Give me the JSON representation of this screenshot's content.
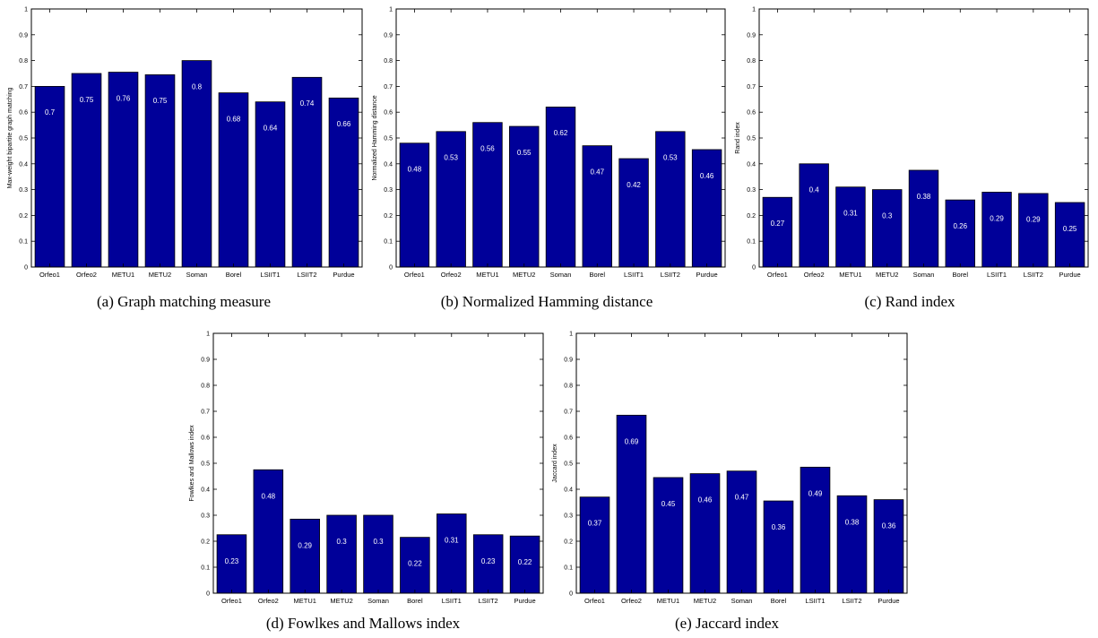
{
  "chart_data": [
    {
      "type": "bar",
      "caption": "(a)  Graph matching measure",
      "ylabel": "Max-weight bipartite graph matching",
      "categories": [
        "Orfeo1",
        "Orfeo2",
        "METU1",
        "METU2",
        "Soman",
        "Borel",
        "LSIIT1",
        "LSIIT2",
        "Purdue"
      ],
      "values": [
        0.7,
        0.75,
        0.755,
        0.745,
        0.8,
        0.675,
        0.64,
        0.735,
        0.655
      ],
      "labels": [
        "0.7",
        "0.75",
        "0.76",
        "0.75",
        "0.8",
        "0.68",
        "0.64",
        "0.74",
        "0.66"
      ],
      "ylim": [
        0,
        1
      ],
      "yticks": [
        "0",
        "0.1",
        "0.2",
        "0.3",
        "0.4",
        "0.5",
        "0.6",
        "0.7",
        "0.8",
        "0.9",
        "1"
      ],
      "bar_color": "#000099"
    },
    {
      "type": "bar",
      "caption": "(b)  Normalized Hamming distance",
      "ylabel": "Normalized Hamming distance",
      "categories": [
        "Orfeo1",
        "Orfeo2",
        "METU1",
        "METU2",
        "Soman",
        "Borel",
        "LSIIT1",
        "LSIIT2",
        "Purdue"
      ],
      "values": [
        0.48,
        0.525,
        0.56,
        0.545,
        0.62,
        0.47,
        0.42,
        0.525,
        0.455
      ],
      "labels": [
        "0.48",
        "0.53",
        "0.56",
        "0.55",
        "0.62",
        "0.47",
        "0.42",
        "0.53",
        "0.46"
      ],
      "ylim": [
        0,
        1
      ],
      "yticks": [
        "0",
        "0.1",
        "0.2",
        "0.3",
        "0.4",
        "0.5",
        "0.6",
        "0.7",
        "0.8",
        "0.9",
        "1"
      ],
      "bar_color": "#000099"
    },
    {
      "type": "bar",
      "caption": "(c)  Rand index",
      "ylabel": "Rand index",
      "categories": [
        "Orfeo1",
        "Orfeo2",
        "METU1",
        "METU2",
        "Soman",
        "Borel",
        "LSIIT1",
        "LSIIT2",
        "Purdue"
      ],
      "values": [
        0.27,
        0.4,
        0.31,
        0.3,
        0.375,
        0.26,
        0.29,
        0.285,
        0.25
      ],
      "labels": [
        "0.27",
        "0.4",
        "0.31",
        "0.3",
        "0.38",
        "0.26",
        "0.29",
        "0.29",
        "0.25"
      ],
      "ylim": [
        0,
        1
      ],
      "yticks": [
        "0",
        "0.1",
        "0.2",
        "0.3",
        "0.4",
        "0.5",
        "0.6",
        "0.7",
        "0.8",
        "0.9",
        "1"
      ],
      "bar_color": "#000099"
    },
    {
      "type": "bar",
      "caption": "(d)  Fowlkes and Mallows index",
      "ylabel": "Fowlkes and Mallows index",
      "categories": [
        "Orfeo1",
        "Orfeo2",
        "METU1",
        "METU2",
        "Soman",
        "Borel",
        "LSIIT1",
        "LSIIT2",
        "Purdue"
      ],
      "values": [
        0.225,
        0.475,
        0.285,
        0.3,
        0.3,
        0.215,
        0.305,
        0.225,
        0.22
      ],
      "labels": [
        "0.23",
        "0.48",
        "0.29",
        "0.3",
        "0.3",
        "0.22",
        "0.31",
        "0.23",
        "0.22"
      ],
      "ylim": [
        0,
        1
      ],
      "yticks": [
        "0",
        "0.1",
        "0.2",
        "0.3",
        "0.4",
        "0.5",
        "0.6",
        "0.7",
        "0.8",
        "0.9",
        "1"
      ],
      "bar_color": "#000099"
    },
    {
      "type": "bar",
      "caption": "(e)  Jaccard index",
      "ylabel": "Jaccard index",
      "categories": [
        "Orfeo1",
        "Orfeo2",
        "METU1",
        "METU2",
        "Soman",
        "Borel",
        "LSIIT1",
        "LSIIT2",
        "Purdue"
      ],
      "values": [
        0.37,
        0.685,
        0.445,
        0.46,
        0.47,
        0.355,
        0.485,
        0.375,
        0.36
      ],
      "labels": [
        "0.37",
        "0.69",
        "0.45",
        "0.46",
        "0.47",
        "0.36",
        "0.49",
        "0.38",
        "0.36"
      ],
      "ylim": [
        0,
        1
      ],
      "yticks": [
        "0",
        "0.1",
        "0.2",
        "0.3",
        "0.4",
        "0.5",
        "0.6",
        "0.7",
        "0.8",
        "0.9",
        "1"
      ],
      "bar_color": "#000099"
    }
  ]
}
